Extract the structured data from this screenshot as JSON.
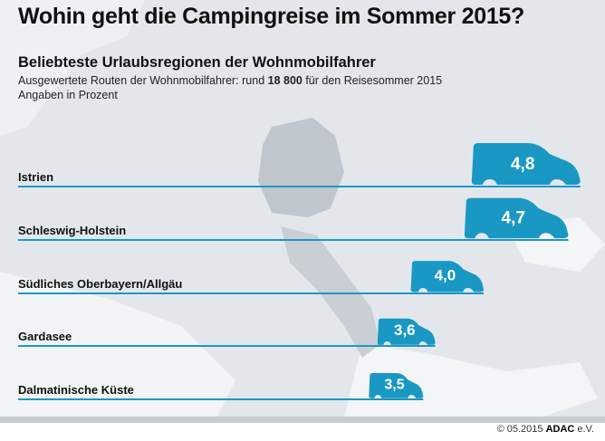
{
  "header": {
    "title": "Wohin geht die Campingreise im Sommer 2015?",
    "subtitle": "Beliebteste Urlaubsregionen der Wohnmobilfahrer",
    "note_prefix": "Ausgewertete Routen der Wohnmobilfahrer: rund ",
    "note_bold": "18 800",
    "note_suffix": " für den Reisesommer 2015",
    "unit_note": "Angaben in Prozent"
  },
  "chart_data": {
    "type": "bar",
    "orientation": "horizontal",
    "title": "Beliebteste Urlaubsregionen der Wohnmobilfahrer",
    "unit": "Prozent",
    "categories": [
      "Istrien",
      "Schleswig-Holstein",
      "Südliches Oberbayern/Allgäu",
      "Gardasee",
      "Dalmatinische Küste"
    ],
    "values": [
      4.8,
      4.7,
      4.0,
      3.6,
      3.5
    ],
    "value_labels": [
      "4,8",
      "4,7",
      "4,0",
      "3,6",
      "3,5"
    ],
    "bar_color": "#1a98c4",
    "marker": "camper-van"
  },
  "footer": {
    "copyright": "© 05.2015 ",
    "brand": "ADAC",
    "suffix": " e.V."
  },
  "colors": {
    "accent": "#1a98c4",
    "map": "#e3e7eb",
    "map_highlight": "#bfc6cd"
  }
}
